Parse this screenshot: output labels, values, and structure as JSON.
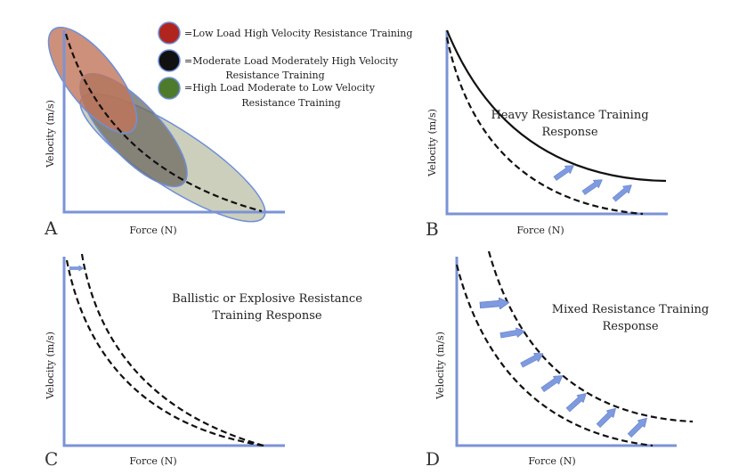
{
  "axes": {
    "x_label": "Force (N)",
    "y_label": "Velocity (m/s)"
  },
  "panels": {
    "A": {
      "letter": "A",
      "legend": [
        {
          "color": "#b0261f",
          "line1": "=Low Load High Velocity Resistance Training",
          "line2": ""
        },
        {
          "color": "#111111",
          "line1": "=Moderate Load Moderately High Velocity",
          "line2": "Resistance Training"
        },
        {
          "color": "#4e7a2c",
          "line1": "=High Load Moderate to Low Velocity",
          "line2": "Resistance Training"
        }
      ],
      "ellipse_colors": {
        "low": "#c0745a",
        "moderate": "#6e6a62",
        "high": "#c3c7b0"
      }
    },
    "B": {
      "letter": "B",
      "title1": "Heavy Resistance Training",
      "title2": "Response"
    },
    "C": {
      "letter": "C",
      "title1": "Ballistic or Explosive Resistance",
      "title2": "Training Response"
    },
    "D": {
      "letter": "D",
      "title1": "Mixed Resistance Training",
      "title2": "Response"
    }
  }
}
